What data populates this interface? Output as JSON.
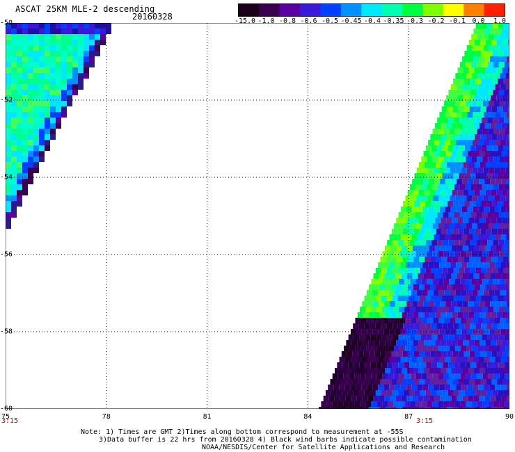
{
  "header": {
    "title": "ASCAT 25KM MLE-2 descending",
    "date": "20160328"
  },
  "colorbar": {
    "labels": [
      "-15.0",
      "-1.0",
      "-0.8",
      "-0.6",
      "-0.5",
      "-0.45",
      "-0.4",
      "-0.35",
      "-0.3",
      "-0.2",
      "-0.1",
      "0.0",
      "1.0"
    ],
    "colors": [
      "#1a0018",
      "#3a0050",
      "#5a00a0",
      "#3a1ad8",
      "#0040ff",
      "#0090ff",
      "#00e8ff",
      "#00ffb0",
      "#00ff40",
      "#80ff00",
      "#ffff00",
      "#ff8000",
      "#ff2000"
    ]
  },
  "axes": {
    "lon_ticks": [
      "75",
      "78",
      "81",
      "84",
      "87",
      "90"
    ],
    "lat_ticks": [
      "-50",
      "-52",
      "-54",
      "-56",
      "-58",
      "-60"
    ],
    "lon_range": [
      75,
      90
    ],
    "lat_range": [
      -50,
      -60
    ],
    "time_labels": [
      "3:15",
      "3:15"
    ]
  },
  "notes": {
    "line1": "Note: 1) Times are GMT 2)Times along bottom correspond to measurement at -55S",
    "line2": "3)Data buffer is 22 hrs from 20160328 4) Black wind barbs indicate possible contamination",
    "line3": "NOAA/NESDIS/Center for Satellite Applications and Research"
  },
  "swaths": {
    "left_edge_points": [
      [
        75.0,
        -50.0
      ],
      [
        78.1,
        -50.0
      ],
      [
        75.0,
        -55.2
      ]
    ],
    "right_edge_points": [
      [
        89.0,
        -50.0
      ],
      [
        90.0,
        -50.0
      ],
      [
        90.0,
        -60.0
      ],
      [
        84.3,
        -60.0
      ]
    ]
  }
}
